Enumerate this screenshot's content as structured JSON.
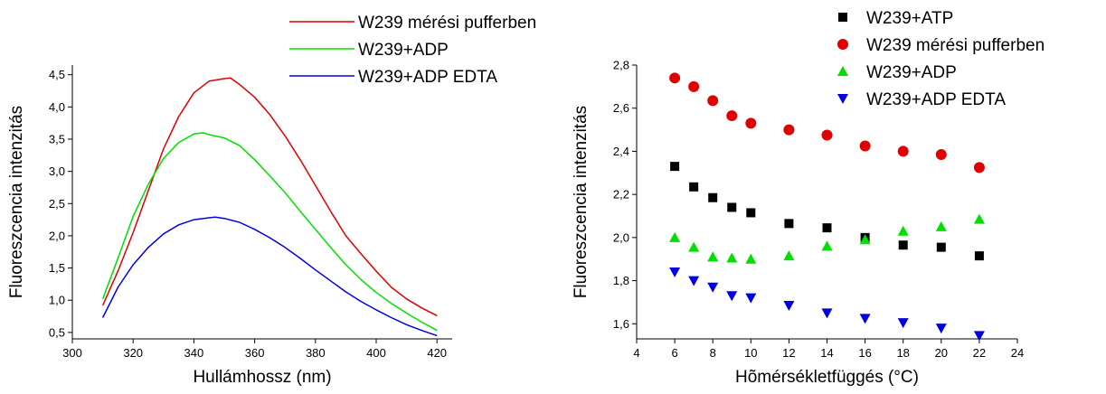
{
  "chart_data": [
    {
      "type": "line",
      "xlabel": "Hullámhossz (nm)",
      "ylabel": "Fluoreszcencia intenzitás",
      "xlim": [
        300,
        425
      ],
      "ylim": [
        0.4,
        4.65
      ],
      "xticks": [
        "300",
        "320",
        "340",
        "360",
        "380",
        "400",
        "420"
      ],
      "yticks": [
        "0,5",
        "1,0",
        "1,5",
        "2,0",
        "2,5",
        "3,0",
        "3,5",
        "4,0",
        "4,5"
      ],
      "legend_position": "top",
      "series": [
        {
          "name": "W239 mérési pufferben",
          "color": "#e00000",
          "x": [
            310,
            315,
            320,
            325,
            330,
            335,
            340,
            345,
            350,
            352,
            355,
            360,
            365,
            370,
            375,
            380,
            385,
            390,
            395,
            400,
            405,
            410,
            415,
            420
          ],
          "y": [
            0.92,
            1.45,
            2.05,
            2.7,
            3.35,
            3.85,
            4.22,
            4.4,
            4.44,
            4.45,
            4.35,
            4.15,
            3.88,
            3.55,
            3.18,
            2.78,
            2.38,
            2.0,
            1.72,
            1.45,
            1.2,
            1.02,
            0.88,
            0.76
          ]
        },
        {
          "name": "W239+ADP",
          "color": "#00e000",
          "x": [
            310,
            315,
            320,
            325,
            330,
            335,
            340,
            343,
            345,
            350,
            355,
            360,
            365,
            370,
            375,
            380,
            385,
            390,
            395,
            400,
            405,
            410,
            415,
            420
          ],
          "y": [
            1.02,
            1.65,
            2.3,
            2.8,
            3.2,
            3.45,
            3.58,
            3.6,
            3.57,
            3.52,
            3.4,
            3.18,
            2.93,
            2.67,
            2.38,
            2.1,
            1.82,
            1.55,
            1.32,
            1.12,
            0.95,
            0.8,
            0.66,
            0.53
          ]
        },
        {
          "name": "W239+ADP EDTA",
          "color": "#0000e0",
          "x": [
            310,
            315,
            320,
            325,
            330,
            335,
            340,
            345,
            347,
            350,
            355,
            360,
            365,
            370,
            375,
            380,
            385,
            390,
            395,
            400,
            405,
            410,
            415,
            420
          ],
          "y": [
            0.73,
            1.2,
            1.55,
            1.82,
            2.03,
            2.17,
            2.25,
            2.28,
            2.29,
            2.27,
            2.21,
            2.1,
            1.97,
            1.82,
            1.65,
            1.47,
            1.3,
            1.13,
            0.98,
            0.85,
            0.73,
            0.62,
            0.53,
            0.45
          ]
        }
      ]
    },
    {
      "type": "scatter",
      "xlabel": "Hõmérsékletfüggés (°C)",
      "ylabel": "Fluoreszcencia intenzitás",
      "xlim": [
        4,
        24
      ],
      "ylim": [
        1.53,
        2.8
      ],
      "xticks": [
        "4",
        "6",
        "8",
        "10",
        "12",
        "14",
        "16",
        "18",
        "20",
        "22",
        "24"
      ],
      "yticks": [
        "1,6",
        "1,8",
        "2,0",
        "2,2",
        "2,4",
        "2,6",
        "2,8"
      ],
      "legend_position": "top-right",
      "series": [
        {
          "name": "W239+ATP",
          "marker": "square",
          "color": "#000000",
          "x": [
            6,
            7,
            8,
            9,
            10,
            12,
            14,
            16,
            18,
            20,
            22
          ],
          "y": [
            2.33,
            2.235,
            2.185,
            2.14,
            2.115,
            2.065,
            2.045,
            2.0,
            1.965,
            1.955,
            1.915
          ]
        },
        {
          "name": "W239 mérési pufferben",
          "marker": "circle",
          "color": "#e00000",
          "x": [
            6,
            7,
            8,
            9,
            10,
            12,
            14,
            16,
            18,
            20,
            22
          ],
          "y": [
            2.74,
            2.7,
            2.635,
            2.565,
            2.53,
            2.5,
            2.475,
            2.425,
            2.4,
            2.385,
            2.325
          ]
        },
        {
          "name": "W239+ADP",
          "marker": "triangle-up",
          "color": "#00e000",
          "x": [
            6,
            7,
            8,
            9,
            10,
            12,
            14,
            16,
            18,
            20,
            22
          ],
          "y": [
            2.0,
            1.955,
            1.91,
            1.905,
            1.9,
            1.915,
            1.96,
            1.99,
            2.03,
            2.05,
            2.085
          ]
        },
        {
          "name": "W239+ADP EDTA",
          "marker": "triangle-down",
          "color": "#0000e0",
          "x": [
            6,
            7,
            8,
            9,
            10,
            12,
            14,
            16,
            18,
            20,
            22
          ],
          "y": [
            1.84,
            1.8,
            1.77,
            1.73,
            1.72,
            1.685,
            1.65,
            1.625,
            1.605,
            1.58,
            1.545
          ]
        }
      ]
    }
  ]
}
